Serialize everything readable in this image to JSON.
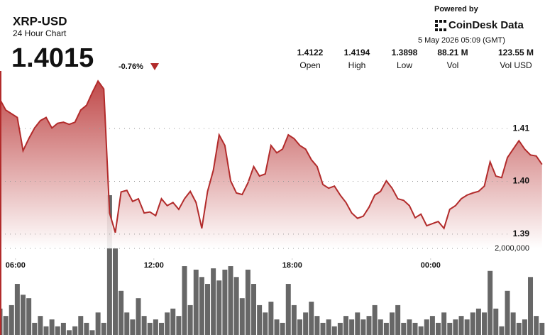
{
  "header": {
    "title": "XRP-USD",
    "subtitle": "24 Hour Chart",
    "price": "1.4015",
    "change": "-0.76%",
    "powered_by": "Powered by",
    "brand": "CoinDesk Data",
    "timestamp": "5 May 2026 05:09 (GMT)",
    "stats": [
      {
        "value": "1.4122",
        "label": "Open"
      },
      {
        "value": "1.4194",
        "label": "High"
      },
      {
        "value": "1.3898",
        "label": "Low"
      },
      {
        "value": "88.21 M",
        "label": "Vol"
      },
      {
        "value": "123.55 M",
        "label": "Vol USD"
      }
    ]
  },
  "chart_data": {
    "type": "line",
    "x": [
      5.33,
      5.58,
      5.83,
      6.08,
      6.33,
      6.58,
      6.83,
      7.08,
      7.33,
      7.58,
      7.83,
      8.08,
      8.33,
      8.58,
      8.83,
      9.08,
      9.33,
      9.58,
      9.83,
      10.08,
      10.33,
      10.58,
      10.83,
      11.08,
      11.33,
      11.58,
      11.83,
      12.08,
      12.33,
      12.58,
      12.83,
      13.08,
      13.33,
      13.58,
      13.83,
      14.08,
      14.33,
      14.58,
      14.83,
      15.08,
      15.33,
      15.58,
      15.83,
      16.08,
      16.33,
      16.58,
      16.83,
      17.08,
      17.33,
      17.58,
      17.83,
      18.08,
      18.33,
      18.58,
      18.83,
      19.08,
      19.33,
      19.58,
      19.83,
      20.08,
      20.33,
      20.58,
      20.83,
      21.08,
      21.33,
      21.58,
      21.83,
      22.08,
      22.33,
      22.58,
      22.83,
      23.08,
      23.33,
      23.58,
      23.83,
      24.08,
      24.33,
      24.58,
      24.83,
      25.08,
      25.33,
      25.58,
      25.83,
      26.08,
      26.33,
      26.58,
      26.83,
      27.08,
      27.33,
      27.58,
      27.83,
      28.08,
      28.33,
      28.58,
      28.83
    ],
    "series": [
      {
        "type": "line",
        "color": "#b22b2b",
        "values": [
          1.4155,
          1.4135,
          1.4128,
          1.4121,
          1.4058,
          1.4081,
          1.4101,
          1.4115,
          1.4121,
          1.4101,
          1.411,
          1.4112,
          1.4108,
          1.4112,
          1.4135,
          1.4144,
          1.4168,
          1.419,
          1.4175,
          1.394,
          1.3903,
          1.398,
          1.3983,
          1.3962,
          1.3967,
          1.394,
          1.3942,
          1.3935,
          1.3967,
          1.3954,
          1.396,
          1.3947,
          1.3967,
          1.3981,
          1.396,
          1.3911,
          1.3981,
          1.4021,
          1.4088,
          1.4068,
          1.4001,
          1.3978,
          1.3975,
          1.3997,
          1.4028,
          1.401,
          1.4014,
          1.4068,
          1.4054,
          1.4061,
          1.4088,
          1.4081,
          1.4068,
          1.4061,
          1.4041,
          1.4028,
          1.3994,
          1.3987,
          1.3991,
          1.3974,
          1.396,
          1.394,
          1.393,
          1.3934,
          1.3951,
          1.3974,
          1.3981,
          1.4001,
          1.3987,
          1.3967,
          1.3964,
          1.3954,
          1.3931,
          1.3938,
          1.3916,
          1.392,
          1.3924,
          1.3911,
          1.3947,
          1.3954,
          1.3967,
          1.3974,
          1.3978,
          1.3981,
          1.3991,
          1.4037,
          1.401,
          1.4007,
          1.4045,
          1.4061,
          1.4077,
          1.4061,
          1.405,
          1.4048,
          1.4032
        ]
      },
      {
        "type": "bar",
        "axis": "y2",
        "color": "#676767",
        "values": [
          610000,
          440000,
          690000,
          1180000,
          930000,
          850000,
          280000,
          440000,
          200000,
          360000,
          200000,
          280000,
          110000,
          200000,
          440000,
          280000,
          110000,
          520000,
          280000,
          3230000,
          2000000,
          1020000,
          520000,
          360000,
          850000,
          440000,
          280000,
          360000,
          280000,
          520000,
          610000,
          440000,
          1590000,
          690000,
          1510000,
          1340000,
          1180000,
          1540000,
          1260000,
          1510000,
          1590000,
          1340000,
          850000,
          1510000,
          1180000,
          690000,
          520000,
          770000,
          360000,
          280000,
          1180000,
          690000,
          360000,
          520000,
          770000,
          440000,
          280000,
          360000,
          200000,
          280000,
          440000,
          360000,
          520000,
          360000,
          440000,
          690000,
          360000,
          280000,
          520000,
          690000,
          280000,
          360000,
          280000,
          200000,
          360000,
          440000,
          280000,
          520000,
          280000,
          360000,
          440000,
          360000,
          520000,
          610000,
          520000,
          1480000,
          610000,
          200000,
          1020000,
          520000,
          280000,
          360000,
          1340000,
          440000,
          280000
        ]
      }
    ],
    "xlim": [
      5.33,
      28.96
    ],
    "xticks": [
      {
        "value": 6,
        "label": "06:00"
      },
      {
        "value": 12,
        "label": "12:00"
      },
      {
        "value": 18,
        "label": "18:00"
      },
      {
        "value": 24,
        "label": "00:00"
      }
    ],
    "ylim": [
      1.3873,
      1.4209
    ],
    "yticks": [
      1.39,
      {
        "value": 1.4,
        "label": "1.40"
      },
      1.41
    ],
    "y2lim": [
      0,
      7740000
    ],
    "y2ticks": [
      {
        "value": 2000000,
        "label": "2,000,000"
      }
    ],
    "grid": true
  }
}
